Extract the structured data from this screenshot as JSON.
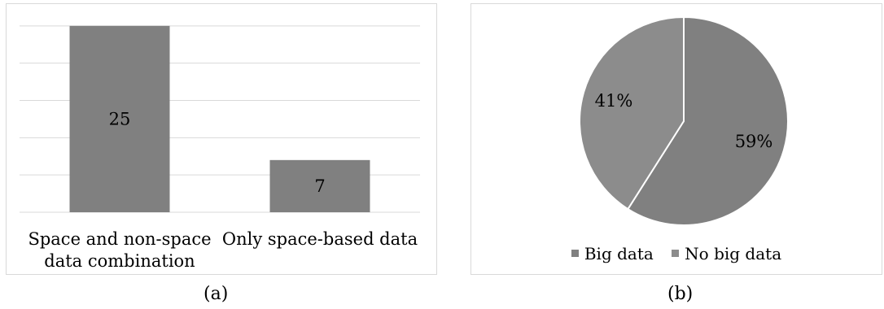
{
  "chart_data": [
    {
      "type": "bar",
      "categories": [
        [
          "Space and non-space",
          "data combination"
        ],
        [
          "Only space-based data"
        ]
      ],
      "values": [
        25,
        7
      ],
      "data_labels": [
        "25",
        "7"
      ],
      "ylim": [
        0,
        30
      ],
      "gridlines": [
        5,
        10,
        15,
        20,
        25,
        30
      ],
      "grid": true,
      "axis_ticks_visible": false,
      "colors": {
        "bar": "#808080",
        "grid": "#d9d9d9"
      }
    },
    {
      "type": "pie",
      "labels": [
        "Big data",
        "No big data"
      ],
      "values": [
        59,
        41
      ],
      "data_labels": [
        "59%",
        "41%"
      ],
      "legend_position": "bottom",
      "colors": [
        "#808080",
        "#8c8c8c"
      ]
    }
  ],
  "captions": {
    "a": "(a)",
    "b": "(b)"
  }
}
